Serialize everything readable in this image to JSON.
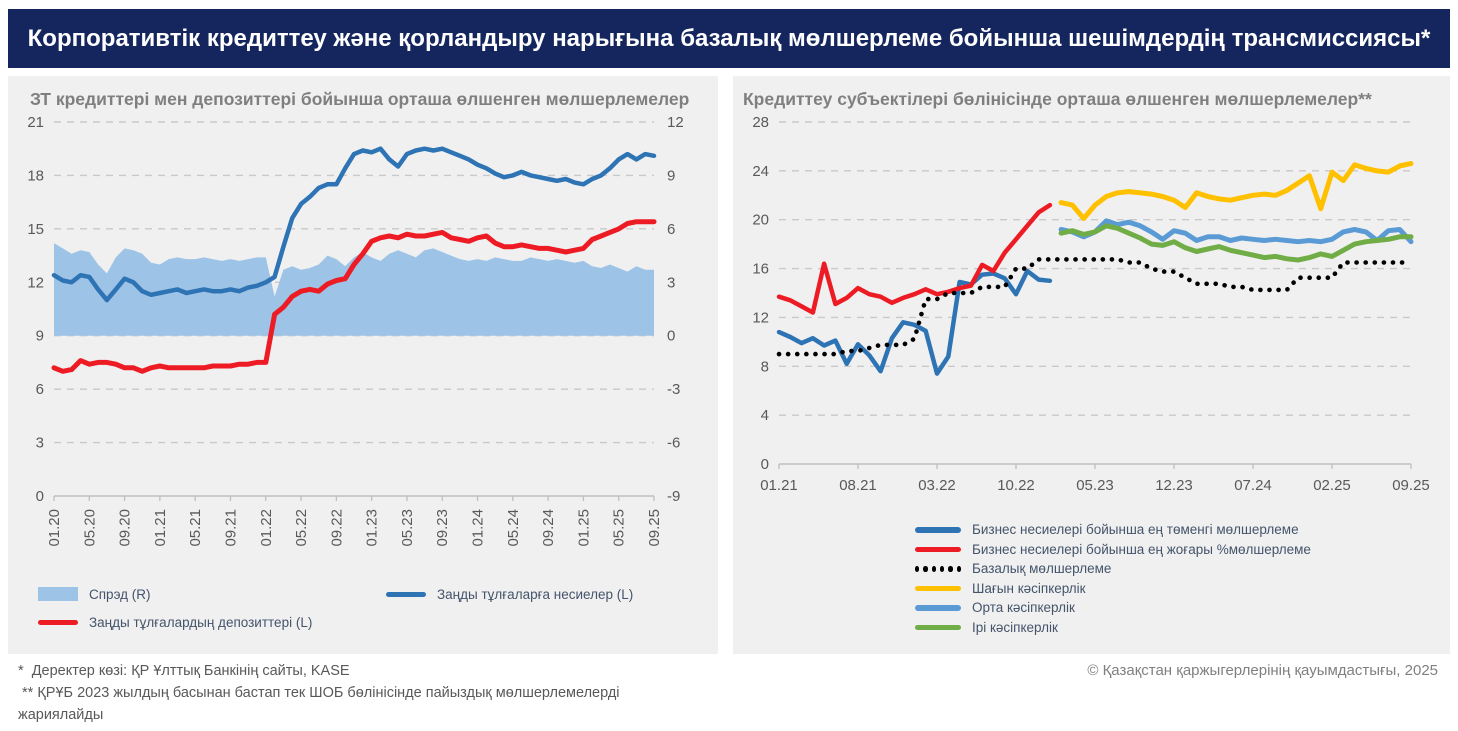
{
  "header": {
    "title": "Корпоративтік кредиттеу және қорландыру нарығына базалық мөлшерлеме бойынша шешімдердің трансмиссиясы*"
  },
  "colors": {
    "header_bg": "#15265E",
    "panel_bg": "#F0F0F0",
    "credits_blue": "#2E74B5",
    "deposits_red": "#ED1C24",
    "spread_area": "#9DC3E6",
    "small_business_yellow": "#FFC000",
    "medium_business_blue": "#5B9BD5",
    "large_business_green": "#70AD47",
    "base_rate_black": "#000000"
  },
  "left_panel": {
    "title": "ЗТ кредиттері мен депозиттері бойынша орташа өлшенген мөлшерлемелер",
    "legend": [
      {
        "label": "Спрэд (R)",
        "type": "area",
        "color": "#9DC3E6"
      },
      {
        "label": "Заңды тұлғаларға несиелер (L)",
        "type": "line",
        "color": "#2E74B5"
      },
      {
        "label": "Заңды тұлғалардың депозиттері (L)",
        "type": "line",
        "color": "#ED1C24"
      }
    ]
  },
  "right_panel": {
    "title": "Кредиттеу субъектілері бөлінісінде орташа өлшенген мөлшерлемелер**",
    "legend": [
      {
        "label": "Бизнес несиелері бойынша ең төменгі мөлшерлеме",
        "type": "line",
        "color": "#2E74B5"
      },
      {
        "label": "Бизнес несиелері бойынша ең жоғары %мөлшерлеме",
        "type": "line",
        "color": "#ED1C24"
      },
      {
        "label": "Базалық мөлшерлеме",
        "type": "dotted",
        "color": "#000000"
      },
      {
        "label": "Шағын кәсіпкерлік",
        "type": "line",
        "color": "#FFC000"
      },
      {
        "label": "Орта кәсіпкерлік",
        "type": "line",
        "color": "#5B9BD5"
      },
      {
        "label": "Ірі кәсіпкерлік",
        "type": "line",
        "color": "#70AD47"
      }
    ]
  },
  "footnotes": {
    "source": "*  Деректер көзі: ҚР Ұлттық Банкінің сайты, KASE",
    "methodology": " ** ҚРҰБ 2023 жылдың басынан бастап тек ШОБ бөлінісінде пайыздық мөлшерлемелерді жариялайды",
    "copyright": "© Қазақстан қаржыгерлерінің қауымдастығы, 2025"
  },
  "chart_data": [
    {
      "type": "line",
      "title": "ЗТ кредиттері мен депозиттері бойынша орташа өлшенген мөлшерлемелер",
      "xlabel": "",
      "ylabel": "",
      "grid": true,
      "legend_position": "bottom",
      "ylim_left": [
        0,
        21
      ],
      "ytick_left": 3,
      "ylim_right": [
        -9,
        12
      ],
      "ytick_right": 3,
      "x_tick_every": 4,
      "x": [
        "01.20",
        "02.20",
        "03.20",
        "04.20",
        "05.20",
        "06.20",
        "07.20",
        "08.20",
        "09.20",
        "10.20",
        "11.20",
        "12.20",
        "01.21",
        "02.21",
        "03.21",
        "04.21",
        "05.21",
        "06.21",
        "07.21",
        "08.21",
        "09.21",
        "10.21",
        "11.21",
        "12.21",
        "01.22",
        "02.22",
        "03.22",
        "04.22",
        "05.22",
        "06.22",
        "07.22",
        "08.22",
        "09.22",
        "10.22",
        "11.22",
        "12.22",
        "01.23",
        "02.23",
        "03.23",
        "04.23",
        "05.23",
        "06.23",
        "07.23",
        "08.23",
        "09.23",
        "10.23",
        "11.23",
        "12.23",
        "01.24",
        "02.24",
        "03.24",
        "04.24",
        "05.24",
        "06.24",
        "07.24",
        "08.24",
        "09.24",
        "10.24",
        "11.24",
        "12.24",
        "01.25",
        "02.25",
        "03.25",
        "04.25",
        "05.25",
        "06.25",
        "07.25",
        "08.25",
        "09.25"
      ],
      "series": [
        {
          "name": "Спрэд (R)",
          "type": "area",
          "axis": "right",
          "color": "#9DC3E6",
          "base": 0,
          "values": [
            5.2,
            4.9,
            4.6,
            4.8,
            4.7,
            4.0,
            3.5,
            4.4,
            4.9,
            4.8,
            4.6,
            4.1,
            4.0,
            4.3,
            4.4,
            4.3,
            4.3,
            4.4,
            4.3,
            4.2,
            4.3,
            4.2,
            4.3,
            4.4,
            4.4,
            2.2,
            3.7,
            3.9,
            3.7,
            3.8,
            4.0,
            4.5,
            4.3,
            3.9,
            4.4,
            4.7,
            4.4,
            4.2,
            4.6,
            4.8,
            4.6,
            4.4,
            4.8,
            4.9,
            4.7,
            4.5,
            4.3,
            4.2,
            4.3,
            4.2,
            4.4,
            4.3,
            4.2,
            4.2,
            4.4,
            4.3,
            4.2,
            4.3,
            4.2,
            4.1,
            4.2,
            3.9,
            3.8,
            4.0,
            3.8,
            3.6,
            3.9,
            3.7,
            3.7
          ]
        },
        {
          "name": "Заңды тұлғаларға несиелер (L)",
          "type": "line",
          "axis": "left",
          "color": "#2E74B5",
          "width": 4.5,
          "values": [
            12.4,
            12.1,
            12.0,
            12.4,
            12.3,
            11.6,
            11.0,
            11.6,
            12.2,
            12.0,
            11.5,
            11.3,
            11.4,
            11.5,
            11.6,
            11.4,
            11.5,
            11.6,
            11.5,
            11.5,
            11.6,
            11.5,
            11.7,
            11.8,
            12.0,
            12.3,
            14.0,
            15.6,
            16.4,
            16.8,
            17.3,
            17.5,
            17.5,
            18.4,
            19.2,
            19.4,
            19.3,
            19.5,
            18.9,
            18.5,
            19.2,
            19.4,
            19.5,
            19.4,
            19.5,
            19.3,
            19.1,
            18.9,
            18.6,
            18.4,
            18.1,
            17.9,
            18.0,
            18.2,
            18.0,
            17.9,
            17.8,
            17.7,
            17.8,
            17.6,
            17.5,
            17.8,
            18.0,
            18.4,
            18.9,
            19.2,
            18.9,
            19.2,
            19.1
          ]
        },
        {
          "name": "Заңды тұлғалардың депозиттері (L)",
          "type": "line",
          "axis": "left",
          "color": "#ED1C24",
          "width": 5,
          "values": [
            7.2,
            7.0,
            7.1,
            7.6,
            7.4,
            7.5,
            7.5,
            7.4,
            7.2,
            7.2,
            7.0,
            7.2,
            7.3,
            7.2,
            7.2,
            7.2,
            7.2,
            7.2,
            7.3,
            7.3,
            7.3,
            7.4,
            7.4,
            7.5,
            7.5,
            10.2,
            10.6,
            11.2,
            11.5,
            11.6,
            11.5,
            11.9,
            12.1,
            12.2,
            13.0,
            13.6,
            14.3,
            14.5,
            14.6,
            14.5,
            14.7,
            14.6,
            14.6,
            14.7,
            14.8,
            14.5,
            14.4,
            14.3,
            14.5,
            14.6,
            14.2,
            14.0,
            14.0,
            14.1,
            14.0,
            13.9,
            13.9,
            13.8,
            13.7,
            13.8,
            13.9,
            14.4,
            14.6,
            14.8,
            15.0,
            15.3,
            15.4,
            15.4,
            15.4
          ]
        }
      ]
    },
    {
      "type": "line",
      "title": "Кредиттеу субъектілері бөлінісінде орташа өлшенген мөлшерлемелер**",
      "xlabel": "",
      "ylabel": "",
      "grid": true,
      "legend_position": "bottom",
      "ylim_left": [
        0,
        28
      ],
      "ytick_left": 4,
      "ylim_right": null,
      "ytick_right": null,
      "x_tick_every": 7,
      "x": [
        "01.21",
        "02.21",
        "03.21",
        "04.21",
        "05.21",
        "06.21",
        "07.21",
        "08.21",
        "09.21",
        "10.21",
        "11.21",
        "12.21",
        "01.22",
        "02.22",
        "03.22",
        "04.22",
        "05.22",
        "06.22",
        "07.22",
        "08.22",
        "09.22",
        "10.22",
        "11.22",
        "12.22",
        "01.23",
        "02.23",
        "03.23",
        "04.23",
        "05.23",
        "06.23",
        "07.23",
        "08.23",
        "09.23",
        "10.23",
        "11.23",
        "12.23",
        "01.24",
        "02.24",
        "03.24",
        "04.24",
        "05.24",
        "06.24",
        "07.24",
        "08.24",
        "09.24",
        "10.24",
        "11.24",
        "12.24",
        "01.25",
        "02.25",
        "03.25",
        "04.25",
        "05.25",
        "06.25",
        "07.25",
        "08.25",
        "09.25"
      ],
      "series": [
        {
          "name": "Бизнес несиелері бойынша ең төменгі мөлшерлеме",
          "type": "line",
          "axis": "left",
          "color": "#2E74B5",
          "width": 4.5,
          "values": [
            10.8,
            10.4,
            9.9,
            10.3,
            9.7,
            10.1,
            8.2,
            9.8,
            8.9,
            7.6,
            10.3,
            11.6,
            11.4,
            10.9,
            7.4,
            8.8,
            14.9,
            14.7,
            15.5,
            15.6,
            15.2,
            13.9,
            15.8,
            15.1,
            15.0,
            null,
            null,
            null,
            null,
            null,
            null,
            null,
            null,
            null,
            null,
            null,
            null,
            null,
            null,
            null,
            null,
            null,
            null,
            null,
            null,
            null,
            null,
            null,
            null,
            null,
            null,
            null,
            null,
            null,
            null,
            null,
            null
          ]
        },
        {
          "name": "Бизнес несиелері бойынша ең жоғары %мөлшерлеме",
          "type": "line",
          "axis": "left",
          "color": "#ED1C24",
          "width": 4.5,
          "values": [
            13.7,
            13.4,
            12.9,
            12.4,
            16.4,
            13.1,
            13.6,
            14.4,
            13.9,
            13.7,
            13.2,
            13.6,
            13.9,
            14.3,
            13.9,
            14.1,
            14.4,
            14.6,
            16.3,
            15.8,
            17.3,
            18.4,
            19.5,
            20.6,
            21.2,
            null,
            null,
            null,
            null,
            null,
            null,
            null,
            null,
            null,
            null,
            null,
            null,
            null,
            null,
            null,
            null,
            null,
            null,
            null,
            null,
            null,
            null,
            null,
            null,
            null,
            null,
            null,
            null,
            null,
            null,
            null,
            null
          ]
        },
        {
          "name": "Базалық мөлшерлеме",
          "type": "dotted",
          "axis": "left",
          "color": "#000000",
          "values": [
            9.0,
            9.0,
            9.0,
            9.0,
            9.0,
            9.0,
            9.25,
            9.25,
            9.5,
            9.75,
            9.75,
            9.75,
            10.25,
            13.5,
            13.5,
            14.0,
            14.0,
            14.0,
            14.5,
            14.5,
            14.5,
            16.0,
            16.0,
            16.75,
            16.75,
            16.75,
            16.75,
            16.75,
            16.75,
            16.75,
            16.75,
            16.5,
            16.5,
            16.0,
            15.75,
            15.75,
            15.25,
            14.75,
            14.75,
            14.75,
            14.5,
            14.5,
            14.25,
            14.25,
            14.25,
            14.25,
            15.25,
            15.25,
            15.25,
            15.25,
            16.5,
            16.5,
            16.5,
            16.5,
            16.5,
            16.5,
            16.5
          ]
        },
        {
          "name": "Шағын кәсіпкерлік",
          "type": "line",
          "axis": "left",
          "color": "#FFC000",
          "width": 5,
          "values": [
            null,
            null,
            null,
            null,
            null,
            null,
            null,
            null,
            null,
            null,
            null,
            null,
            null,
            null,
            null,
            null,
            null,
            null,
            null,
            null,
            null,
            null,
            null,
            null,
            null,
            21.4,
            21.2,
            20.1,
            21.2,
            21.9,
            22.2,
            22.3,
            22.2,
            22.1,
            21.9,
            21.6,
            21.0,
            22.2,
            21.9,
            21.7,
            21.6,
            21.8,
            22.0,
            22.1,
            22.0,
            22.4,
            23.0,
            23.6,
            20.9,
            23.9,
            23.2,
            24.5,
            24.2,
            24.0,
            23.9,
            24.4,
            24.6
          ]
        },
        {
          "name": "Орта кәсіпкерлік",
          "type": "line",
          "axis": "left",
          "color": "#5B9BD5",
          "width": 5,
          "values": [
            null,
            null,
            null,
            null,
            null,
            null,
            null,
            null,
            null,
            null,
            null,
            null,
            null,
            null,
            null,
            null,
            null,
            null,
            null,
            null,
            null,
            null,
            null,
            null,
            null,
            19.2,
            19.0,
            18.6,
            19.0,
            19.9,
            19.6,
            19.8,
            19.5,
            19.0,
            18.4,
            19.1,
            18.9,
            18.3,
            18.6,
            18.6,
            18.3,
            18.5,
            18.4,
            18.3,
            18.4,
            18.3,
            18.2,
            18.3,
            18.2,
            18.4,
            19.0,
            19.2,
            19.0,
            18.3,
            19.1,
            19.2,
            18.2
          ]
        },
        {
          "name": "Ірі кәсіпкерлік",
          "type": "line",
          "axis": "left",
          "color": "#70AD47",
          "width": 5,
          "values": [
            null,
            null,
            null,
            null,
            null,
            null,
            null,
            null,
            null,
            null,
            null,
            null,
            null,
            null,
            null,
            null,
            null,
            null,
            null,
            null,
            null,
            null,
            null,
            null,
            null,
            18.9,
            19.1,
            18.8,
            19.0,
            19.5,
            19.3,
            18.9,
            18.5,
            18.0,
            17.9,
            18.2,
            17.7,
            17.4,
            17.6,
            17.8,
            17.5,
            17.3,
            17.1,
            16.9,
            17.0,
            16.8,
            16.7,
            16.9,
            17.2,
            17.0,
            17.5,
            18.0,
            18.2,
            18.3,
            18.4,
            18.6,
            18.6
          ]
        }
      ]
    }
  ]
}
